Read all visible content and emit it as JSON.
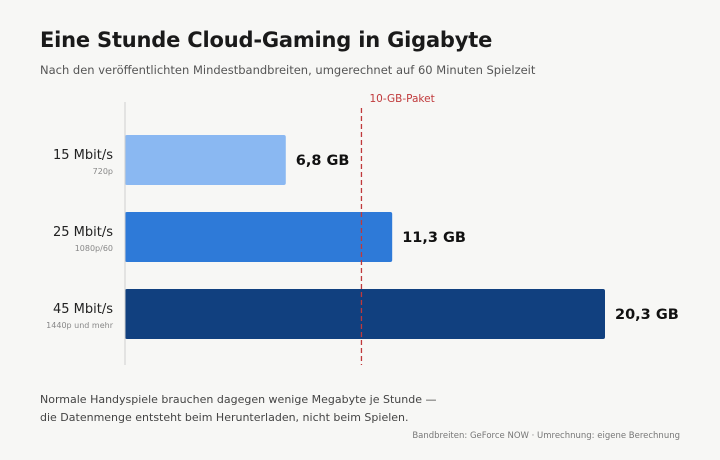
{
  "header": {
    "title": "Eine Stunde Cloud-Gaming in Gigabyte",
    "subtitle": "Nach den veröffentlichten Mindestbandbreiten, umgerechnet auf 60 Minuten Spielzeit"
  },
  "chart_data": {
    "type": "bar",
    "orientation": "horizontal",
    "categories": [
      "15 Mbit/s",
      "25 Mbit/s",
      "45 Mbit/s"
    ],
    "sublabels": [
      "720p",
      "1080p/60",
      "1440p und mehr"
    ],
    "values": [
      6.8,
      11.3,
      20.3
    ],
    "value_labels": [
      "6,8 GB",
      "11,3 GB",
      "20,3 GB"
    ],
    "bar_colors": [
      "#8ab8f2",
      "#2e7ad8",
      "#11407f"
    ],
    "reference_line": {
      "value": 10,
      "label": "10-GB-Paket",
      "color": "#c0393b"
    },
    "title": "Eine Stunde Cloud-Gaming in Gigabyte",
    "xlabel": "",
    "ylabel": "",
    "xlim": [
      0,
      20.3
    ],
    "grid": false,
    "legend": "none"
  },
  "footnote": {
    "line1": "Normale Handyspiele brauchen dagegen wenige Megabyte je Stunde —",
    "line2": "die Datenmenge entsteht beim Herunterladen, nicht beim Spielen."
  },
  "source": "Bandbreiten: GeForce NOW · Umrechnung: eigene Berechnung"
}
